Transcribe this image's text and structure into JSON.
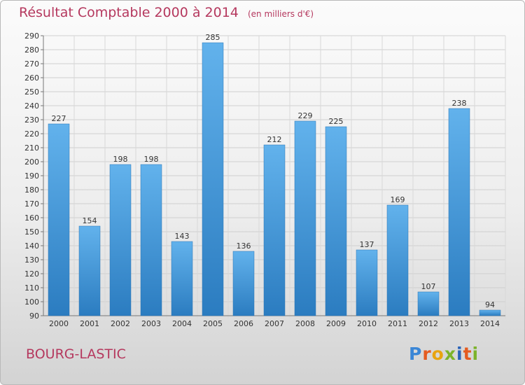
{
  "header": {
    "title": "Résultat Comptable 2000 à 2014",
    "unit": "(en milliers d'€)"
  },
  "footer": {
    "commune": "BOURG-LASTIC"
  },
  "logo": {
    "letters": [
      "P",
      "r",
      "o",
      "x",
      "i",
      "t",
      "i"
    ]
  },
  "colors": {
    "bar_light": "#62b2ec",
    "bar_dark": "#2b7cc0",
    "title": "#b5385e"
  },
  "chart_data": {
    "type": "bar",
    "title": "Résultat Comptable 2000 à 2014",
    "subtitle": "(en milliers d'€)",
    "xlabel": "",
    "ylabel": "",
    "categories": [
      "2000",
      "2001",
      "2002",
      "2003",
      "2004",
      "2005",
      "2006",
      "2007",
      "2008",
      "2009",
      "2010",
      "2011",
      "2012",
      "2013",
      "2014"
    ],
    "values": [
      227,
      154,
      198,
      198,
      143,
      285,
      136,
      212,
      229,
      225,
      137,
      169,
      107,
      238,
      94
    ],
    "ylim": [
      90,
      290
    ],
    "yticks": [
      90,
      100,
      110,
      120,
      130,
      140,
      150,
      160,
      170,
      180,
      190,
      200,
      210,
      220,
      230,
      240,
      250,
      260,
      270,
      280,
      290
    ],
    "grid": true
  }
}
